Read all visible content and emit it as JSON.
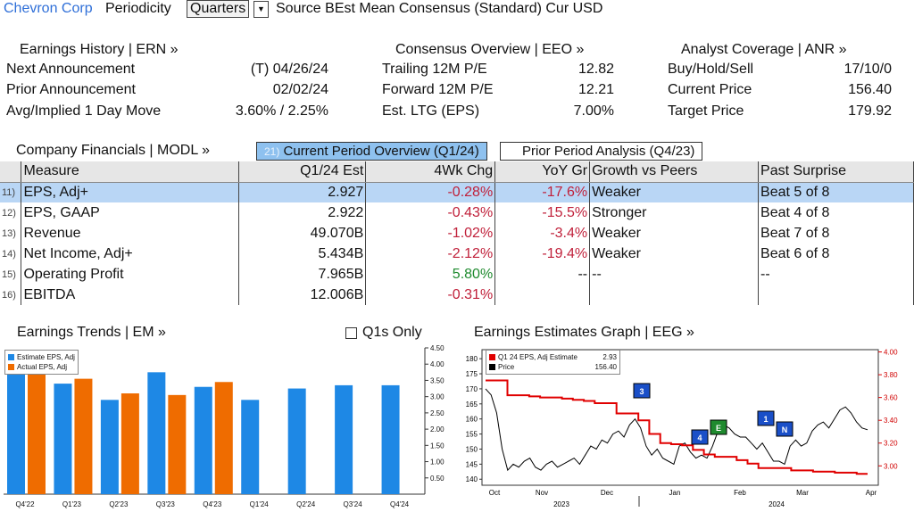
{
  "topbar": {
    "company": "Chevron Corp",
    "periodicity_label": "Periodicity",
    "periodicity_value": "Quarters",
    "source_text": "Source BEst Mean Consensus (Standard) Cur USD"
  },
  "earnings_history": {
    "title": "Earnings History | ERN »",
    "rows": [
      {
        "label": "Next Announcement",
        "value": "(T)  04/26/24"
      },
      {
        "label": "Prior Announcement",
        "value": "02/02/24"
      },
      {
        "label": "Avg/Implied 1 Day Move",
        "value": "3.60% / 2.25%"
      }
    ]
  },
  "consensus": {
    "title": "Consensus Overview | EEO »",
    "rows": [
      {
        "label": "Trailing 12M P/E",
        "value": "12.82"
      },
      {
        "label": "Forward 12M P/E",
        "value": "12.21"
      },
      {
        "label": "Est. LTG (EPS)",
        "value": "7.00%"
      }
    ]
  },
  "analyst": {
    "title": "Analyst Coverage | ANR »",
    "rows": [
      {
        "label": "Buy/Hold/Sell",
        "value": "17/10/0"
      },
      {
        "label": "Current Price",
        "value": "156.40"
      },
      {
        "label": "Target Price",
        "value": "179.92"
      }
    ]
  },
  "financials": {
    "title": "Company Financials | MODL »",
    "tab_active_num": "21)",
    "tab_active": "Current Period Overview (Q1/24)",
    "tab_inactive": "Prior Period Analysis (Q4/23)",
    "headers": [
      "Measure",
      "Q1/24 Est",
      "4Wk Chg",
      "YoY Gr",
      "Growth vs Peers",
      "Past Surprise"
    ],
    "rows": [
      {
        "num": "11)",
        "measure": "EPS, Adj+",
        "est": "2.927",
        "chg": "-0.28%",
        "chg_sign": "neg",
        "yoy": "-17.6%",
        "yoy_sign": "neg",
        "peers": "Weaker",
        "surprise": "Beat 5 of 8"
      },
      {
        "num": "12)",
        "measure": "EPS, GAAP",
        "est": "2.922",
        "chg": "-0.43%",
        "chg_sign": "neg",
        "yoy": "-15.5%",
        "yoy_sign": "neg",
        "peers": "Stronger",
        "surprise": "Beat 4 of 8"
      },
      {
        "num": "13)",
        "measure": "Revenue",
        "est": "49.070B",
        "chg": "-1.02%",
        "chg_sign": "neg",
        "yoy": "-3.4%",
        "yoy_sign": "neg",
        "peers": "Weaker",
        "surprise": "Beat 7 of 8"
      },
      {
        "num": "14)",
        "measure": "Net Income, Adj+",
        "est": "5.434B",
        "chg": "-2.12%",
        "chg_sign": "neg",
        "yoy": "-19.4%",
        "yoy_sign": "neg",
        "peers": "Weaker",
        "surprise": "Beat 6 of 8"
      },
      {
        "num": "15)",
        "measure": "Operating Profit",
        "est": "7.965B",
        "chg": "5.80%",
        "chg_sign": "pos",
        "yoy": "--",
        "yoy_sign": "none",
        "peers": "--",
        "surprise": "--"
      },
      {
        "num": "16)",
        "measure": "EBITDA",
        "est": "12.006B",
        "chg": "-0.31%",
        "chg_sign": "neg",
        "yoy": "",
        "yoy_sign": "none",
        "peers": "",
        "surprise": ""
      }
    ]
  },
  "trends": {
    "title": "Earnings Trends | EM »",
    "checkbox_label": "Q1s Only"
  },
  "estimates": {
    "title": "Earnings Estimates Graph | EEG »"
  },
  "colors": {
    "estimate": "#1e88e5",
    "actual": "#ef6c00",
    "price": "#000000",
    "eps_line": "#e00000",
    "accent": "#2f6fd8",
    "selected_row": "#b9d6f5"
  },
  "chart_data": [
    {
      "type": "bar",
      "categories": [
        "Q4'22",
        "Q1'23",
        "Q2'23",
        "Q3'23",
        "Q4'23",
        "Q1'24",
        "Q2'24",
        "Q3'24",
        "Q4'24"
      ],
      "series": [
        {
          "name": "Estimate EPS, Adj",
          "values": [
            4.1,
            3.4,
            2.9,
            3.75,
            3.3,
            2.9,
            3.25,
            3.35,
            3.35
          ]
        },
        {
          "name": "Actual EPS, Adj",
          "values": [
            4.1,
            3.55,
            3.1,
            3.05,
            3.45,
            null,
            null,
            null,
            null
          ]
        }
      ],
      "ylim": [
        0,
        4.5
      ],
      "yticks": [
        "0.50",
        "1.00",
        "1.50",
        "2.00",
        "2.50",
        "3.00",
        "3.50",
        "4.00",
        "4.50"
      ],
      "legend": "top-left"
    },
    {
      "type": "line",
      "x_labels": [
        "Oct",
        "Nov",
        "Dec",
        "Jan",
        "Feb",
        "Mar",
        "Apr"
      ],
      "year_labels": [
        "2023",
        "2024"
      ],
      "left_ticks": [
        "140",
        "145",
        "150",
        "155",
        "160",
        "165",
        "170",
        "175",
        "180"
      ],
      "right_ticks": [
        "3.00",
        "3.20",
        "3.40",
        "3.60",
        "3.80",
        "4.00"
      ],
      "left_ylim": [
        138,
        183
      ],
      "right_ylim": [
        2.83,
        4.02
      ],
      "series": [
        {
          "name": "Q1 24 EPS, Adj Estimate",
          "axis": "right",
          "last": "2.93"
        },
        {
          "name": "Price",
          "axis": "left",
          "last": "156.40"
        }
      ],
      "markers": [
        "3",
        "4",
        "E",
        "1",
        "N"
      ],
      "legend": "top-left"
    }
  ]
}
